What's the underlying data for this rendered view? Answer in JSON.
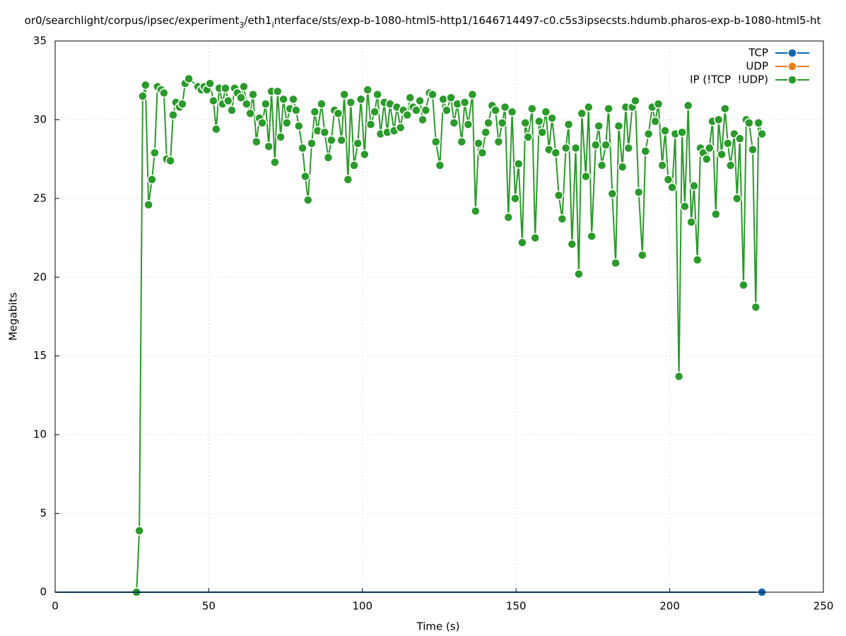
{
  "chart_data": {
    "type": "line",
    "title_parts": [
      {
        "text": "or0/searchlight/corpus/ipsec/experiment"
      },
      {
        "text": "3",
        "subscript": true
      },
      {
        "text": "/eth1"
      },
      {
        "text": "i",
        "subscript": true
      },
      {
        "text": "nterface/sts/exp-b-1080-html5-http1/1646714497-c0.c5s3ipsecsts.hdumb.pharos-exp-b-1080-html5-ht"
      }
    ],
    "x_label": "Time (s)",
    "y_label": "Megabits",
    "xlim": [
      0,
      250
    ],
    "xticks": [
      0,
      50,
      100,
      150,
      200,
      250
    ],
    "ylim": [
      0,
      35
    ],
    "yticks": [
      0,
      5,
      10,
      15,
      20,
      25,
      30,
      35
    ],
    "grid": true,
    "legend_position": "top-right",
    "series": [
      {
        "name": "TCP",
        "color": "#0b68b3",
        "markers": "last",
        "x": [
          0,
          230
        ],
        "values": [
          0,
          0
        ]
      },
      {
        "name": "UDP",
        "color": "#f07d14",
        "markers": "last",
        "x": [
          0,
          230
        ],
        "values": [
          0,
          0
        ]
      },
      {
        "name": "IP (!TCP  !UDP)",
        "color": "#2a9a2a",
        "markers": "all",
        "x": [
          26.5,
          27.4,
          28.5,
          29.4,
          30.4,
          31.5,
          32.4,
          33.3,
          34.5,
          35.4,
          36.3,
          37.5,
          38.4,
          39.3,
          40.5,
          41.4,
          42.3,
          43.5,
          46.5,
          47.6,
          48.5,
          49.4,
          50.4,
          51.5,
          52.4,
          53.4,
          54.5,
          55.4,
          56.3,
          57.5,
          58.4,
          59.3,
          60.5,
          61.4,
          62.3,
          63.5,
          64.4,
          65.5,
          66.5,
          67.4,
          68.5,
          69.5,
          70.4,
          71.5,
          72.4,
          73.4,
          74.3,
          75.4,
          76.4,
          77.5,
          78.4,
          79.3,
          80.5,
          81.4,
          82.3,
          83.5,
          84.5,
          85.4,
          86.7,
          87.7,
          88.9,
          89.9,
          90.9,
          92.1,
          93.2,
          94.1,
          95.3,
          96.2,
          97.3,
          98.5,
          99.5,
          100.7,
          101.7,
          102.7,
          104.0,
          104.9,
          105.9,
          107.1,
          108.1,
          109.0,
          110.3,
          111.2,
          112.4,
          113.3,
          114.6,
          115.5,
          116.5,
          117.5,
          118.7,
          119.6,
          120.6,
          121.8,
          122.8,
          123.9,
          125.2,
          126.3,
          127.4,
          128.8,
          129.8,
          130.9,
          132.3,
          133.3,
          134.4,
          135.8,
          136.8,
          137.8,
          139.0,
          140.1,
          141.0,
          142.2,
          143.3,
          144.3,
          145.5,
          146.4,
          147.5,
          148.7,
          149.7,
          150.8,
          152.0,
          153.0,
          153.9,
          155.2,
          156.2,
          157.5,
          158.5,
          159.7,
          160.7,
          161.7,
          162.9,
          163.9,
          165.0,
          166.2,
          167.1,
          168.2,
          169.4,
          170.4,
          171.4,
          172.7,
          173.6,
          174.6,
          175.9,
          176.9,
          177.9,
          179.2,
          180.1,
          181.3,
          182.4,
          183.4,
          184.6,
          185.7,
          186.6,
          187.8,
          188.8,
          189.9,
          191.1,
          192.1,
          193.1,
          194.3,
          195.3,
          196.3,
          197.6,
          198.5,
          199.5,
          200.8,
          201.8,
          203.0,
          204.0,
          204.9,
          206.0,
          207.0,
          207.9,
          209.0,
          210.0,
          210.9,
          212.0,
          212.9,
          213.9,
          215.0,
          215.9,
          216.9,
          218.0,
          218.9,
          219.8,
          221.0,
          221.9,
          222.8,
          224.0,
          224.9,
          225.8,
          227.0,
          228.0,
          228.9,
          230.0
        ],
        "values": [
          0,
          3.9,
          31.5,
          32.2,
          24.6,
          26.2,
          27.9,
          32.1,
          31.9,
          31.7,
          27.5,
          27.4,
          30.3,
          31.1,
          30.8,
          31.0,
          32.3,
          32.6,
          32.1,
          31.9,
          32.1,
          31.9,
          32.3,
          31.2,
          29.4,
          32.0,
          31.0,
          32.0,
          31.2,
          30.6,
          32.0,
          31.7,
          31.4,
          32.1,
          31.0,
          30.4,
          31.6,
          28.6,
          30.1,
          29.8,
          31.0,
          28.3,
          31.8,
          27.3,
          31.8,
          28.9,
          31.3,
          29.8,
          30.7,
          31.3,
          30.6,
          29.6,
          28.2,
          26.4,
          24.9,
          28.5,
          30.5,
          29.3,
          31.0,
          29.2,
          27.6,
          28.7,
          30.6,
          30.4,
          28.7,
          31.6,
          26.2,
          31.1,
          27.1,
          28.5,
          31.3,
          27.8,
          31.9,
          29.7,
          30.5,
          31.6,
          29.1,
          31.1,
          29.2,
          31.0,
          29.3,
          30.8,
          29.5,
          30.6,
          30.3,
          31.4,
          30.8,
          30.6,
          31.2,
          30.0,
          30.6,
          31.7,
          31.6,
          28.6,
          27.1,
          31.3,
          30.6,
          31.4,
          29.8,
          31.0,
          28.6,
          31.1,
          29.7,
          31.6,
          24.2,
          28.5,
          27.9,
          29.2,
          29.8,
          30.9,
          30.6,
          28.6,
          29.8,
          30.8,
          23.8,
          30.5,
          25.0,
          27.2,
          22.2,
          29.8,
          28.9,
          30.7,
          22.5,
          29.9,
          29.2,
          30.5,
          28.1,
          30.1,
          27.9,
          25.2,
          23.7,
          28.2,
          29.7,
          22.1,
          28.2,
          20.2,
          30.4,
          26.4,
          30.8,
          22.6,
          28.4,
          29.6,
          27.1,
          28.4,
          30.7,
          25.3,
          20.9,
          29.6,
          27.0,
          30.8,
          28.2,
          30.8,
          31.2,
          25.4,
          21.4,
          28.0,
          29.1,
          30.8,
          29.9,
          31.0,
          27.1,
          29.3,
          26.2,
          25.7,
          29.1,
          13.7,
          29.2,
          24.5,
          30.9,
          23.5,
          25.8,
          21.1,
          28.2,
          27.9,
          27.5,
          28.2,
          29.9,
          24.0,
          30.0,
          27.8,
          30.7,
          28.5,
          27.1,
          29.1,
          25.0,
          28.8,
          19.5,
          30.0,
          29.8,
          28.1,
          18.1,
          29.8,
          29.1
        ]
      }
    ]
  }
}
